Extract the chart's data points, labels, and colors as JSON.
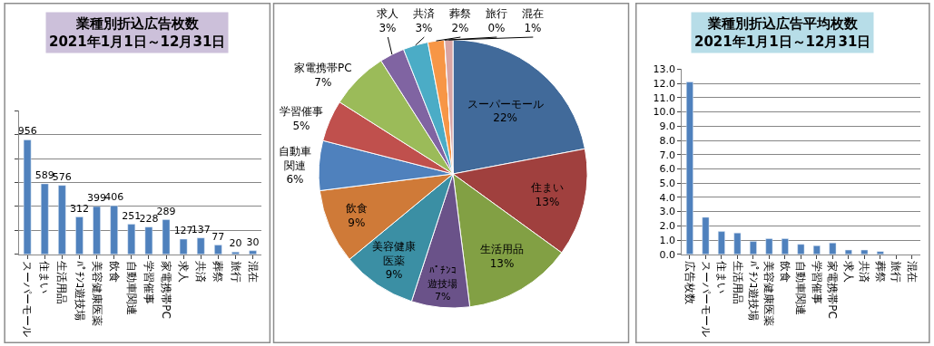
{
  "chart_data": [
    {
      "type": "bar",
      "title": "業種別折込広告枚数\n2021年1月1日～12月31日",
      "categories": [
        "スーパーモール",
        "住まい",
        "生活用品",
        "ﾊﾟﾁﾝｺ遊技場",
        "美容健康医薬",
        "飲食",
        "自動車関連",
        "学習催事",
        "家電携帯PC",
        "求人",
        "共済",
        "葬祭",
        "旅行",
        "混在"
      ],
      "values": [
        956,
        589,
        576,
        312,
        399,
        406,
        251,
        228,
        289,
        127,
        137,
        77,
        20,
        30
      ],
      "color": "#4f81bd",
      "data_labels": true,
      "ylim": [
        0,
        1200
      ],
      "yticks": [
        {
          "value": 0,
          "label": null
        },
        {
          "value": 200,
          "label": null
        },
        {
          "value": 400,
          "label": null
        },
        {
          "value": 600,
          "label": null
        },
        {
          "value": 800,
          "label": null
        },
        {
          "value": 1000,
          "label": null
        },
        {
          "value": 1200,
          "label": null
        }
      ],
      "tick_labels": "x",
      "grid": "y"
    },
    {
      "type": "pie",
      "categories": [
        "スーパーモール",
        "住まい",
        "生活用品",
        "ﾊﾟﾁﾝｺ遊技場",
        "美容健康医薬",
        "飲食",
        "自動車関連",
        "学習催事",
        "家電携帯PC",
        "求人",
        "共済",
        "葬祭",
        "旅行",
        "混在"
      ],
      "values": [
        22,
        13,
        13,
        7,
        9,
        9,
        6,
        5,
        7,
        3,
        3,
        2,
        0,
        1
      ],
      "value_labels": [
        "22%",
        "13%",
        "13%",
        "7%",
        "9%",
        "9%",
        "6%",
        "5%",
        "7%",
        "3%",
        "3%",
        "2%",
        "0%",
        "1%"
      ],
      "colors": [
        "#416a9a",
        "#a0403e",
        "#82a044",
        "#6a5289",
        "#3b8fa4",
        "#cf7a38",
        "#4f81bd",
        "#c0504d",
        "#9bbb59",
        "#8064a2",
        "#4bacc6",
        "#f79646",
        "#a5b9d9",
        "#d9a5a4"
      ],
      "data_labels": true
    },
    {
      "type": "bar",
      "title": "業種別折込広告平均枚数\n2021年1月1日～12月31日",
      "categories": [
        "広告枚数",
        "スーパーモール",
        "住まい",
        "生活用品",
        "ﾊﾟﾁﾝｺ遊技場",
        "美容健康医薬",
        "飲食",
        "自動車関連",
        "学習催事",
        "家電携帯PC",
        "求人",
        "共済",
        "葬祭",
        "旅行",
        "混在"
      ],
      "values": [
        12.1,
        2.6,
        1.6,
        1.5,
        0.9,
        1.1,
        1.1,
        0.7,
        0.6,
        0.8,
        0.3,
        0.3,
        0.2,
        null,
        null
      ],
      "color": "#4f81bd",
      "ylim": [
        0,
        13
      ],
      "yticks": [
        {
          "value": 0,
          "label": "0.0"
        },
        {
          "value": 1,
          "label": "1.0"
        },
        {
          "value": 2,
          "label": "2.0"
        },
        {
          "value": 3,
          "label": "3.0"
        },
        {
          "value": 4,
          "label": "4.0"
        },
        {
          "value": 5,
          "label": "5.0"
        },
        {
          "value": 6,
          "label": "6.0"
        },
        {
          "value": 7,
          "label": "7.0"
        },
        {
          "value": 8,
          "label": "8.0"
        },
        {
          "value": 9,
          "label": "9.0"
        },
        {
          "value": 10,
          "label": "10.0"
        },
        {
          "value": 11,
          "label": "11.0"
        },
        {
          "value": 12,
          "label": "12.0"
        },
        {
          "value": 13,
          "label": "13.0"
        }
      ],
      "grid": "y"
    }
  ]
}
